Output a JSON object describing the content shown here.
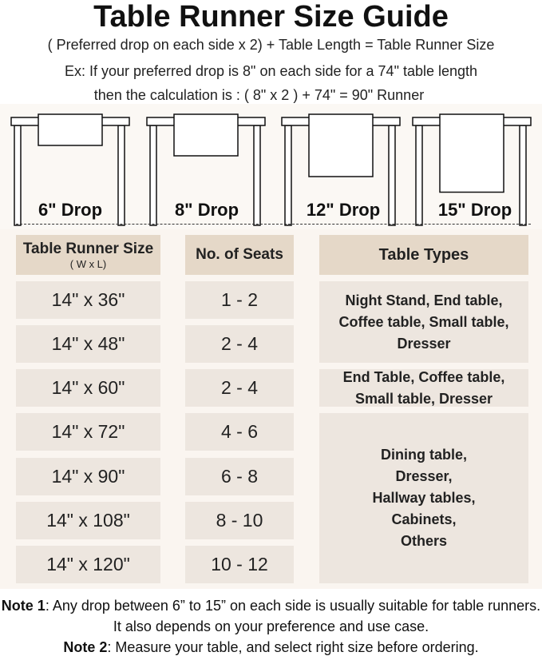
{
  "title": "Table Runner Size Guide",
  "formula": "( Preferred drop on each side x 2) + Table Length = Table Runner Size",
  "example_line1": "Ex: If your preferred drop is 8\" on each side for a 74\" table length",
  "example_line2": "then the calculation is : ( 8\" x 2 ) + 74\" = 90\" Runner",
  "drops": [
    {
      "label": "6\" Drop",
      "inches": 6
    },
    {
      "label": "8\" Drop",
      "inches": 8
    },
    {
      "label": "12\" Drop",
      "inches": 12
    },
    {
      "label": "15\" Drop",
      "inches": 15
    }
  ],
  "headers": {
    "size": "Table Runner Size",
    "size_sub": "( W x L)",
    "seats": "No. of Seats",
    "types": "Table Types"
  },
  "rows": [
    {
      "size": "14\" x 36\"",
      "seats": "1 - 2"
    },
    {
      "size": "14\" x 48\"",
      "seats": "2 - 4"
    },
    {
      "size": "14\" x 60\"",
      "seats": "2 - 4"
    },
    {
      "size": "14\" x 72\"",
      "seats": "4 - 6"
    },
    {
      "size": "14\" x 90\"",
      "seats": "6 - 8"
    },
    {
      "size": "14\" x 108\"",
      "seats": "8 - 10"
    },
    {
      "size": "14\" x 120\"",
      "seats": "10 - 12"
    }
  ],
  "types": [
    "Night Stand, End table, Coffee table, Small table, Dresser",
    "End Table, Coffee table, Small table, Dresser",
    "Dining table, Dresser, Hallway tables, Cabinets, Others"
  ],
  "notes": {
    "n1_label": "Note 1",
    "n1_text": ": Any drop between 6” to 15” on each side is usually suitable for table runners. It also depends on your preference and use case.",
    "n2_label": "Note 2",
    "n2_text": ": Measure your table, and select right size before ordering."
  },
  "colors": {
    "header_cell": "#e5d8c8",
    "body_cell": "#ede6df",
    "table_bg": "#faf5f0"
  }
}
